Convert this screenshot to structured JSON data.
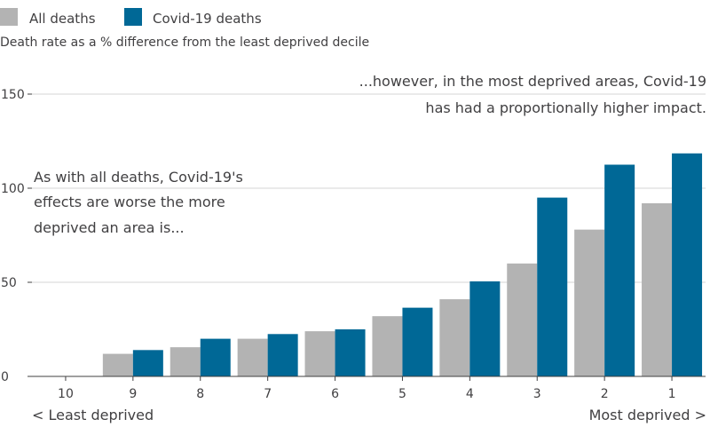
{
  "chart_data": {
    "type": "bar",
    "subtitle": "Death rate as a % difference from the least deprived decile",
    "categories": [
      "10",
      "9",
      "8",
      "7",
      "6",
      "5",
      "4",
      "3",
      "2",
      "1"
    ],
    "series": [
      {
        "name": "All deaths",
        "values": [
          0,
          12,
          15.5,
          20,
          24,
          32,
          41,
          60,
          78,
          92
        ],
        "color": "#b3b3b3"
      },
      {
        "name": "Covid-19 deaths",
        "values": [
          0,
          14,
          20,
          22.5,
          25,
          36.5,
          50.5,
          95,
          112.5,
          118.5
        ],
        "color": "#006896"
      }
    ],
    "ylim": [
      0,
      150
    ],
    "yticks": [
      0,
      50,
      100,
      150
    ],
    "grid": true,
    "legend_position": "top-left",
    "x_end_labels": {
      "left": "< Least deprived",
      "right": "Most deprived >"
    },
    "annotations": {
      "left": [
        "As with all deaths, Covid-19's",
        "effects are worse the more",
        "deprived an area is..."
      ],
      "right": [
        "...however, in the most deprived areas, Covid-19",
        "has had a proportionally higher impact."
      ]
    }
  }
}
